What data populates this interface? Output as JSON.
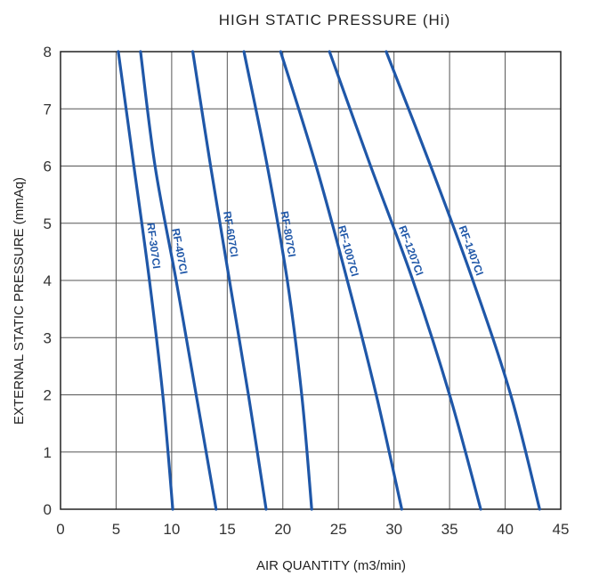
{
  "chart_data": {
    "type": "line",
    "title": "HIGH STATIC PRESSURE (Hi)",
    "xlabel": "AIR QUANTITY (m3/min)",
    "ylabel": "EXTERNAL STATIC PRESSURE (mmAq)",
    "xlim": [
      0,
      45
    ],
    "ylim": [
      0,
      8
    ],
    "x_ticks": [
      0,
      5,
      10,
      15,
      20,
      25,
      30,
      35,
      40,
      45
    ],
    "y_ticks": [
      0,
      1,
      2,
      3,
      4,
      5,
      6,
      7,
      8
    ],
    "grid": true,
    "series_color": "#1f57a8",
    "grid_color": "#555555",
    "series": [
      {
        "name": "RF-307CI",
        "x": [
          5.2,
          6.6,
          8.0,
          9.2,
          10.1
        ],
        "y": [
          8,
          6,
          4,
          2,
          0
        ]
      },
      {
        "name": "RF-407CI",
        "x": [
          7.2,
          8.5,
          10.4,
          12.2,
          14.0
        ],
        "y": [
          8,
          6,
          4,
          2,
          0
        ]
      },
      {
        "name": "RF-607CI",
        "x": [
          11.9,
          13.5,
          15.2,
          16.9,
          18.5
        ],
        "y": [
          8,
          6,
          4,
          2,
          0
        ]
      },
      {
        "name": "RF-807CI",
        "x": [
          16.5,
          18.6,
          20.4,
          21.7,
          22.6
        ],
        "y": [
          8,
          6,
          4,
          2,
          0
        ]
      },
      {
        "name": "RF-1007CI",
        "x": [
          19.8,
          23.0,
          25.8,
          28.4,
          30.7
        ],
        "y": [
          8,
          6,
          4,
          2,
          0
        ]
      },
      {
        "name": "RF-1207CI",
        "x": [
          24.2,
          27.9,
          31.7,
          35.0,
          37.8
        ],
        "y": [
          8,
          6,
          4,
          2,
          0
        ]
      },
      {
        "name": "RF-1407CI",
        "x": [
          29.3,
          33.3,
          37.1,
          40.5,
          43.1
        ],
        "y": [
          8,
          6,
          4,
          2,
          0
        ]
      }
    ],
    "series_labels_at_y": [
      4.6,
      4.5,
      4.8,
      4.8,
      4.5,
      4.5,
      4.5
    ]
  }
}
